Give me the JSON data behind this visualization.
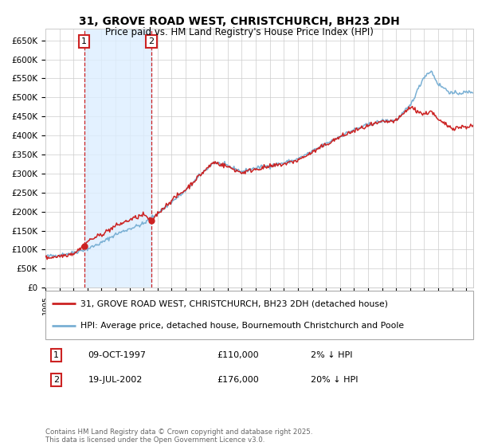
{
  "title1": "31, GROVE ROAD WEST, CHRISTCHURCH, BH23 2DH",
  "title2": "Price paid vs. HM Land Registry's House Price Index (HPI)",
  "ylim": [
    0,
    680000
  ],
  "yticks": [
    0,
    50000,
    100000,
    150000,
    200000,
    250000,
    300000,
    350000,
    400000,
    450000,
    500000,
    550000,
    600000,
    650000
  ],
  "ytick_labels": [
    "£0",
    "£50K",
    "£100K",
    "£150K",
    "£200K",
    "£250K",
    "£300K",
    "£350K",
    "£400K",
    "£450K",
    "£500K",
    "£550K",
    "£600K",
    "£650K"
  ],
  "purchase1_date": 1997.77,
  "purchase1_price": 110000,
  "purchase2_date": 2002.55,
  "purchase2_price": 176000,
  "hpi_color": "#7ab0d4",
  "price_color": "#cc2222",
  "vline_color": "#cc2222",
  "vband_color": "#ddeeff",
  "grid_color": "#cccccc",
  "background_color": "#ffffff",
  "legend_label_price": "31, GROVE ROAD WEST, CHRISTCHURCH, BH23 2DH (detached house)",
  "legend_label_hpi": "HPI: Average price, detached house, Bournemouth Christchurch and Poole",
  "annotation1_date": "09-OCT-1997",
  "annotation1_price": "£110,000",
  "annotation1_hpi": "2% ↓ HPI",
  "annotation2_date": "19-JUL-2002",
  "annotation2_price": "£176,000",
  "annotation2_hpi": "20% ↓ HPI",
  "footer": "Contains HM Land Registry data © Crown copyright and database right 2025.\nThis data is licensed under the Open Government Licence v3.0.",
  "xlim_start": 1995.0,
  "xlim_end": 2025.5,
  "hpi_anchors_x": [
    1995,
    1996,
    1997,
    1998,
    1999,
    2000,
    2001,
    2002,
    2003,
    2004,
    2005,
    2006,
    2007,
    2008,
    2009,
    2010,
    2011,
    2012,
    2013,
    2014,
    2015,
    2016,
    2017,
    2018,
    2019,
    2020,
    2021,
    2022.0,
    2022.5,
    2023,
    2024,
    2025.5
  ],
  "hpi_anchors_y": [
    82000,
    86000,
    92000,
    102000,
    118000,
    140000,
    155000,
    168000,
    195000,
    225000,
    255000,
    295000,
    330000,
    320000,
    305000,
    315000,
    320000,
    328000,
    338000,
    358000,
    378000,
    398000,
    415000,
    428000,
    438000,
    440000,
    478000,
    555000,
    570000,
    535000,
    510000,
    515000
  ],
  "price_anchors_x": [
    1995,
    1996,
    1997,
    1997.77,
    1998,
    1999,
    2000,
    2001,
    2002,
    2002.55,
    2003,
    2004,
    2005,
    2006,
    2007,
    2008,
    2009,
    2010,
    2011,
    2012,
    2013,
    2014,
    2015,
    2016,
    2017,
    2018,
    2019,
    2020,
    2021,
    2022.0,
    2022.5,
    2023,
    2024,
    2025.5
  ],
  "price_anchors_y": [
    78000,
    83000,
    90000,
    110000,
    122000,
    140000,
    162000,
    178000,
    192000,
    176000,
    195000,
    230000,
    258000,
    295000,
    330000,
    318000,
    302000,
    312000,
    318000,
    325000,
    335000,
    355000,
    376000,
    396000,
    412000,
    425000,
    435000,
    438000,
    475000,
    455000,
    465000,
    440000,
    420000,
    425000
  ]
}
